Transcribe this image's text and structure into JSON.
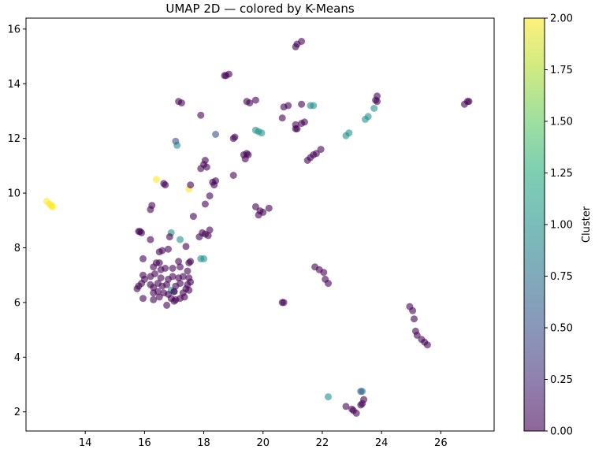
{
  "chart_data": {
    "type": "scatter",
    "title": "UMAP 2D — colored by K-Means",
    "xlabel": "",
    "ylabel": "",
    "xlim": [
      12.0,
      27.8
    ],
    "ylim": [
      1.3,
      16.4
    ],
    "x_ticks": [
      14,
      16,
      18,
      20,
      22,
      24,
      26
    ],
    "y_ticks": [
      2,
      4,
      6,
      8,
      10,
      12,
      14,
      16
    ],
    "grid": false,
    "colormap": "viridis",
    "point_alpha": 0.6,
    "colorbar": {
      "label": "Cluster",
      "range": [
        0,
        2
      ],
      "ticks": [
        "0.00",
        "0.25",
        "0.50",
        "0.75",
        "1.00",
        "1.25",
        "1.50",
        "1.75",
        "2.00"
      ]
    },
    "points": [
      {
        "x": 12.7,
        "y": 9.7,
        "c": 2
      },
      {
        "x": 12.8,
        "y": 9.6,
        "c": 2
      },
      {
        "x": 12.85,
        "y": 9.55,
        "c": 2
      },
      {
        "x": 12.9,
        "y": 9.5,
        "c": 2
      },
      {
        "x": 16.4,
        "y": 10.5,
        "c": 2
      },
      {
        "x": 17.5,
        "y": 10.15,
        "c": 2
      },
      {
        "x": 17.1,
        "y": 11.75,
        "c": 1
      },
      {
        "x": 17.05,
        "y": 11.9,
        "c": 0.5
      },
      {
        "x": 18.4,
        "y": 12.15,
        "c": 0.5
      },
      {
        "x": 16.9,
        "y": 8.55,
        "c": 1
      },
      {
        "x": 17.2,
        "y": 8.3,
        "c": 1
      },
      {
        "x": 17.9,
        "y": 7.6,
        "c": 1
      },
      {
        "x": 18.0,
        "y": 7.6,
        "c": 1
      },
      {
        "x": 16.9,
        "y": 6.45,
        "c": 1
      },
      {
        "x": 17.0,
        "y": 6.4,
        "c": 0.5
      },
      {
        "x": 19.75,
        "y": 12.3,
        "c": 1
      },
      {
        "x": 19.85,
        "y": 12.25,
        "c": 1
      },
      {
        "x": 19.95,
        "y": 12.2,
        "c": 1
      },
      {
        "x": 21.6,
        "y": 13.2,
        "c": 1
      },
      {
        "x": 21.7,
        "y": 13.2,
        "c": 1
      },
      {
        "x": 22.8,
        "y": 12.1,
        "c": 1
      },
      {
        "x": 22.9,
        "y": 12.2,
        "c": 1
      },
      {
        "x": 23.45,
        "y": 12.7,
        "c": 1
      },
      {
        "x": 23.55,
        "y": 12.8,
        "c": 1
      },
      {
        "x": 23.75,
        "y": 13.1,
        "c": 1
      },
      {
        "x": 22.2,
        "y": 2.55,
        "c": 1
      },
      {
        "x": 23.35,
        "y": 2.75,
        "c": 1
      },
      {
        "x": 23.3,
        "y": 2.75,
        "c": 0.5
      },
      {
        "x": 18.75,
        "y": 14.3,
        "c": 0
      },
      {
        "x": 18.85,
        "y": 14.35,
        "c": 0
      },
      {
        "x": 18.7,
        "y": 14.3,
        "c": 0
      },
      {
        "x": 21.1,
        "y": 15.35,
        "c": 0
      },
      {
        "x": 21.15,
        "y": 15.45,
        "c": 0
      },
      {
        "x": 21.3,
        "y": 15.55,
        "c": 0
      },
      {
        "x": 17.15,
        "y": 13.35,
        "c": 0
      },
      {
        "x": 17.25,
        "y": 13.3,
        "c": 0
      },
      {
        "x": 17.9,
        "y": 12.85,
        "c": 0
      },
      {
        "x": 19.45,
        "y": 13.35,
        "c": 0
      },
      {
        "x": 19.55,
        "y": 13.3,
        "c": 0
      },
      {
        "x": 19.75,
        "y": 13.4,
        "c": 0
      },
      {
        "x": 20.7,
        "y": 13.15,
        "c": 0
      },
      {
        "x": 20.85,
        "y": 13.2,
        "c": 0
      },
      {
        "x": 21.3,
        "y": 13.25,
        "c": 0
      },
      {
        "x": 20.65,
        "y": 12.75,
        "c": 0
      },
      {
        "x": 21.1,
        "y": 12.5,
        "c": 0
      },
      {
        "x": 21.3,
        "y": 12.55,
        "c": 0
      },
      {
        "x": 21.4,
        "y": 12.6,
        "c": 0
      },
      {
        "x": 21.1,
        "y": 12.35,
        "c": 0
      },
      {
        "x": 21.15,
        "y": 12.35,
        "c": 0
      },
      {
        "x": 19.0,
        "y": 12.0,
        "c": 0
      },
      {
        "x": 19.05,
        "y": 12.05,
        "c": 0
      },
      {
        "x": 19.35,
        "y": 11.4,
        "c": 0
      },
      {
        "x": 19.45,
        "y": 11.45,
        "c": 0
      },
      {
        "x": 19.5,
        "y": 11.4,
        "c": 0
      },
      {
        "x": 19.4,
        "y": 11.25,
        "c": 0
      },
      {
        "x": 19.0,
        "y": 10.65,
        "c": 0
      },
      {
        "x": 21.5,
        "y": 11.2,
        "c": 0
      },
      {
        "x": 21.6,
        "y": 11.3,
        "c": 0
      },
      {
        "x": 21.7,
        "y": 11.4,
        "c": 0
      },
      {
        "x": 21.8,
        "y": 11.45,
        "c": 0
      },
      {
        "x": 21.95,
        "y": 11.6,
        "c": 0
      },
      {
        "x": 18.05,
        "y": 11.2,
        "c": 0
      },
      {
        "x": 18.0,
        "y": 11.05,
        "c": 0
      },
      {
        "x": 17.9,
        "y": 10.9,
        "c": 0
      },
      {
        "x": 18.1,
        "y": 10.95,
        "c": 0
      },
      {
        "x": 16.65,
        "y": 10.35,
        "c": 0
      },
      {
        "x": 16.7,
        "y": 10.3,
        "c": 0
      },
      {
        "x": 18.3,
        "y": 10.4,
        "c": 0
      },
      {
        "x": 18.4,
        "y": 10.45,
        "c": 0
      },
      {
        "x": 18.35,
        "y": 10.3,
        "c": 0
      },
      {
        "x": 17.55,
        "y": 10.3,
        "c": 0
      },
      {
        "x": 18.2,
        "y": 9.9,
        "c": 0
      },
      {
        "x": 16.2,
        "y": 9.4,
        "c": 0
      },
      {
        "x": 16.25,
        "y": 9.55,
        "c": 0
      },
      {
        "x": 16.2,
        "y": 8.3,
        "c": 0
      },
      {
        "x": 18.05,
        "y": 9.6,
        "c": 0
      },
      {
        "x": 17.65,
        "y": 9.15,
        "c": 0
      },
      {
        "x": 15.85,
        "y": 8.6,
        "c": 0
      },
      {
        "x": 15.9,
        "y": 8.55,
        "c": 0
      },
      {
        "x": 15.8,
        "y": 8.6,
        "c": 0
      },
      {
        "x": 17.85,
        "y": 8.4,
        "c": 0
      },
      {
        "x": 17.95,
        "y": 8.55,
        "c": 0
      },
      {
        "x": 18.05,
        "y": 8.5,
        "c": 0
      },
      {
        "x": 18.2,
        "y": 8.65,
        "c": 0
      },
      {
        "x": 18.15,
        "y": 8.45,
        "c": 0
      },
      {
        "x": 16.85,
        "y": 8.4,
        "c": 0
      },
      {
        "x": 16.6,
        "y": 7.9,
        "c": 0
      },
      {
        "x": 16.5,
        "y": 7.85,
        "c": 0
      },
      {
        "x": 16.8,
        "y": 7.95,
        "c": 0
      },
      {
        "x": 17.4,
        "y": 8.05,
        "c": 0
      },
      {
        "x": 15.95,
        "y": 7.6,
        "c": 0
      },
      {
        "x": 16.4,
        "y": 7.45,
        "c": 0
      },
      {
        "x": 16.5,
        "y": 7.45,
        "c": 0
      },
      {
        "x": 16.3,
        "y": 7.3,
        "c": 0
      },
      {
        "x": 17.15,
        "y": 7.5,
        "c": 0
      },
      {
        "x": 17.5,
        "y": 7.45,
        "c": 0
      },
      {
        "x": 17.55,
        "y": 7.5,
        "c": 0
      },
      {
        "x": 16.7,
        "y": 7.25,
        "c": 0
      },
      {
        "x": 16.55,
        "y": 7.2,
        "c": 0
      },
      {
        "x": 16.95,
        "y": 7.25,
        "c": 0
      },
      {
        "x": 17.2,
        "y": 7.3,
        "c": 0
      },
      {
        "x": 17.45,
        "y": 7.15,
        "c": 0
      },
      {
        "x": 15.95,
        "y": 7.0,
        "c": 0
      },
      {
        "x": 16.0,
        "y": 6.85,
        "c": 0
      },
      {
        "x": 16.2,
        "y": 6.95,
        "c": 0
      },
      {
        "x": 16.35,
        "y": 7.05,
        "c": 0
      },
      {
        "x": 16.55,
        "y": 6.9,
        "c": 0
      },
      {
        "x": 16.8,
        "y": 6.85,
        "c": 0
      },
      {
        "x": 16.95,
        "y": 6.95,
        "c": 0
      },
      {
        "x": 17.15,
        "y": 6.9,
        "c": 0
      },
      {
        "x": 17.3,
        "y": 6.95,
        "c": 0
      },
      {
        "x": 17.5,
        "y": 6.9,
        "c": 0
      },
      {
        "x": 15.8,
        "y": 6.6,
        "c": 0
      },
      {
        "x": 15.9,
        "y": 6.7,
        "c": 0
      },
      {
        "x": 15.75,
        "y": 6.5,
        "c": 0
      },
      {
        "x": 16.2,
        "y": 6.65,
        "c": 0
      },
      {
        "x": 16.3,
        "y": 6.55,
        "c": 0
      },
      {
        "x": 16.45,
        "y": 6.7,
        "c": 0
      },
      {
        "x": 16.6,
        "y": 6.6,
        "c": 0
      },
      {
        "x": 16.75,
        "y": 6.65,
        "c": 0
      },
      {
        "x": 17.05,
        "y": 6.6,
        "c": 0
      },
      {
        "x": 17.2,
        "y": 6.7,
        "c": 0
      },
      {
        "x": 17.45,
        "y": 6.65,
        "c": 0
      },
      {
        "x": 17.55,
        "y": 6.75,
        "c": 0
      },
      {
        "x": 16.3,
        "y": 6.35,
        "c": 0
      },
      {
        "x": 16.45,
        "y": 6.4,
        "c": 0
      },
      {
        "x": 16.65,
        "y": 6.35,
        "c": 0
      },
      {
        "x": 16.8,
        "y": 6.3,
        "c": 0
      },
      {
        "x": 17.0,
        "y": 6.4,
        "c": 0
      },
      {
        "x": 17.3,
        "y": 6.35,
        "c": 0
      },
      {
        "x": 17.4,
        "y": 6.5,
        "c": 0
      },
      {
        "x": 17.5,
        "y": 6.45,
        "c": 0
      },
      {
        "x": 15.95,
        "y": 6.15,
        "c": 0
      },
      {
        "x": 16.3,
        "y": 6.1,
        "c": 0
      },
      {
        "x": 16.5,
        "y": 6.2,
        "c": 0
      },
      {
        "x": 16.9,
        "y": 6.15,
        "c": 0
      },
      {
        "x": 17.05,
        "y": 6.1,
        "c": 0
      },
      {
        "x": 17.2,
        "y": 6.15,
        "c": 0
      },
      {
        "x": 17.35,
        "y": 6.2,
        "c": 0
      },
      {
        "x": 16.75,
        "y": 5.9,
        "c": 0
      },
      {
        "x": 17.0,
        "y": 6.05,
        "c": 0
      },
      {
        "x": 19.75,
        "y": 9.5,
        "c": 0
      },
      {
        "x": 19.9,
        "y": 9.35,
        "c": 0
      },
      {
        "x": 19.85,
        "y": 9.2,
        "c": 0
      },
      {
        "x": 20.0,
        "y": 9.3,
        "c": 0
      },
      {
        "x": 20.2,
        "y": 9.45,
        "c": 0
      },
      {
        "x": 20.65,
        "y": 6.0,
        "c": 0
      },
      {
        "x": 20.7,
        "y": 6.0,
        "c": 0
      },
      {
        "x": 21.75,
        "y": 7.3,
        "c": 0
      },
      {
        "x": 21.9,
        "y": 7.2,
        "c": 0
      },
      {
        "x": 22.05,
        "y": 7.1,
        "c": 0
      },
      {
        "x": 22.1,
        "y": 6.85,
        "c": 0
      },
      {
        "x": 22.2,
        "y": 6.7,
        "c": 0
      },
      {
        "x": 24.95,
        "y": 5.85,
        "c": 0
      },
      {
        "x": 25.05,
        "y": 5.7,
        "c": 0
      },
      {
        "x": 25.1,
        "y": 5.4,
        "c": 0
      },
      {
        "x": 25.15,
        "y": 4.95,
        "c": 0
      },
      {
        "x": 25.2,
        "y": 4.8,
        "c": 0
      },
      {
        "x": 25.35,
        "y": 4.65,
        "c": 0
      },
      {
        "x": 25.45,
        "y": 4.55,
        "c": 0
      },
      {
        "x": 25.55,
        "y": 4.45,
        "c": 0
      },
      {
        "x": 23.85,
        "y": 13.55,
        "c": 0
      },
      {
        "x": 23.8,
        "y": 13.4,
        "c": 0
      },
      {
        "x": 23.85,
        "y": 13.35,
        "c": 0
      },
      {
        "x": 26.8,
        "y": 13.25,
        "c": 0
      },
      {
        "x": 26.9,
        "y": 13.35,
        "c": 0
      },
      {
        "x": 26.95,
        "y": 13.35,
        "c": 0
      },
      {
        "x": 22.8,
        "y": 2.2,
        "c": 0
      },
      {
        "x": 23.0,
        "y": 2.1,
        "c": 0
      },
      {
        "x": 23.05,
        "y": 2.05,
        "c": 0
      },
      {
        "x": 23.15,
        "y": 1.95,
        "c": 0
      },
      {
        "x": 23.3,
        "y": 2.25,
        "c": 0
      },
      {
        "x": 23.35,
        "y": 2.3,
        "c": 0
      },
      {
        "x": 23.4,
        "y": 2.45,
        "c": 0
      }
    ]
  }
}
